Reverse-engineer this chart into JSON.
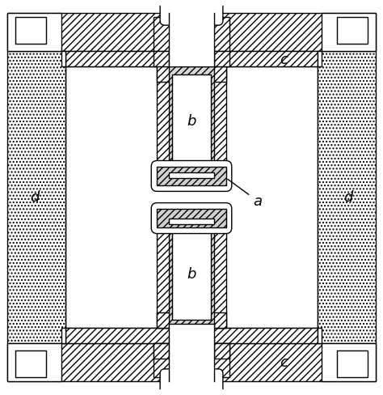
{
  "bg_color": "#ffffff",
  "lw": 1.0,
  "label_a": "a",
  "label_b": "b",
  "label_c": "c",
  "label_d": "d",
  "font_size": 13,
  "fig_width": 4.74,
  "fig_height": 4.89,
  "dpi": 100
}
